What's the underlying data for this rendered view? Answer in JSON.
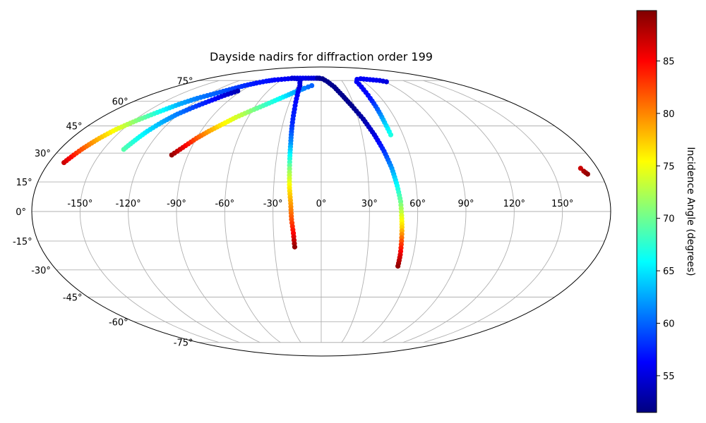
{
  "chart_data": {
    "type": "scatter",
    "projection": "mollweide",
    "title": "Dayside nadirs for diffraction order 199",
    "xlabel": "",
    "ylabel": "",
    "grid": true,
    "lon_ticks": [
      -150,
      -120,
      -90,
      -60,
      -30,
      0,
      30,
      60,
      90,
      120,
      150
    ],
    "lon_tick_labels": [
      "-150°",
      "-120°",
      "-90°",
      "-60°",
      "-30°",
      "0°",
      "30°",
      "60°",
      "90°",
      "120°",
      "150°"
    ],
    "lat_ticks": [
      -75,
      -60,
      -45,
      -30,
      -15,
      0,
      15,
      30,
      45,
      60,
      75
    ],
    "lat_tick_labels": [
      "-75°",
      "-60°",
      "-45°",
      "-30°",
      "-15°",
      "0°",
      "15°",
      "30°",
      "45°",
      "60°",
      "75°"
    ],
    "colormap": "jet",
    "colorbar": {
      "label": "Incidence Angle (degrees)",
      "range": [
        51.5,
        89.8
      ],
      "ticks": [
        55,
        60,
        65,
        70,
        75,
        80,
        85
      ],
      "tick_labels": [
        "55",
        "60",
        "65",
        "70",
        "75",
        "80",
        "85"
      ]
    },
    "series": [
      {
        "points": [
          [
            -170,
            25,
            87
          ],
          [
            -165,
            32,
            82
          ],
          [
            -160,
            38,
            78
          ],
          [
            -155,
            43,
            75
          ],
          [
            -148,
            48,
            71
          ],
          [
            -140,
            53,
            67
          ],
          [
            -132,
            58,
            63
          ],
          [
            -124,
            62,
            61
          ],
          [
            -115,
            65,
            60
          ],
          [
            -106,
            68,
            59
          ],
          [
            -97,
            71,
            58
          ],
          [
            -88,
            73,
            57
          ],
          [
            -79,
            74.5,
            57
          ],
          [
            -70,
            75.5,
            56.5
          ],
          [
            -61,
            76,
            56
          ],
          [
            -52,
            76.5,
            56
          ],
          [
            -43,
            77,
            56
          ],
          [
            -34,
            77,
            56
          ],
          [
            -25,
            77,
            55.5
          ],
          [
            -16,
            77,
            55
          ],
          [
            -8,
            77,
            55
          ],
          [
            -3,
            77,
            55
          ]
        ]
      },
      {
        "points": [
          [
            -136,
            32,
            69
          ],
          [
            -133,
            37,
            67
          ],
          [
            -130,
            42,
            65
          ],
          [
            -126,
            47,
            63
          ],
          [
            -121,
            52,
            61
          ],
          [
            -115,
            56,
            59
          ],
          [
            -108,
            60,
            57
          ],
          [
            -101,
            64,
            55
          ],
          [
            -94,
            67,
            53.5
          ]
        ]
      },
      {
        "points": [
          [
            -101,
            29,
            89
          ],
          [
            -96,
            33,
            86
          ],
          [
            -90,
            38,
            82
          ],
          [
            -84,
            42,
            79
          ],
          [
            -77,
            46,
            76
          ],
          [
            -70,
            50,
            74
          ],
          [
            -61,
            54,
            71
          ],
          [
            -51,
            58,
            68
          ],
          [
            -41,
            62,
            66
          ],
          [
            -30,
            66,
            63
          ],
          [
            -20,
            69,
            61
          ],
          [
            -12,
            71,
            60
          ]
        ]
      },
      {
        "points": [
          [
            -47,
            77,
            55
          ],
          [
            -38,
            76.5,
            55
          ],
          [
            -31,
            75,
            55
          ],
          [
            -27,
            71,
            55
          ],
          [
            -25,
            64,
            56
          ],
          [
            -23.5,
            55,
            57
          ],
          [
            -22.5,
            45,
            58
          ],
          [
            -21.5,
            35,
            62
          ],
          [
            -21,
            27,
            67
          ],
          [
            -20.5,
            20,
            72
          ],
          [
            -20,
            12,
            76
          ],
          [
            -19,
            4,
            79
          ],
          [
            -18.5,
            -4,
            82
          ],
          [
            -17.5,
            -11,
            85
          ],
          [
            -17,
            -18,
            89
          ]
        ]
      },
      {
        "points": [
          [
            -6,
            77,
            53
          ],
          [
            2,
            76.5,
            52
          ],
          [
            9,
            74,
            52
          ],
          [
            16,
            70,
            52
          ],
          [
            22,
            64,
            52
          ],
          [
            28,
            57,
            52
          ],
          [
            34,
            49,
            53
          ],
          [
            39,
            40,
            55
          ],
          [
            43,
            31,
            58
          ],
          [
            46,
            22,
            62
          ],
          [
            48,
            13,
            66
          ],
          [
            49.5,
            5,
            70
          ],
          [
            50,
            -2,
            74
          ],
          [
            50.5,
            -8,
            77
          ],
          [
            51,
            -15,
            82
          ],
          [
            51.5,
            -22,
            86
          ],
          [
            51.5,
            -28,
            89
          ]
        ]
      },
      {
        "points": [
          [
            51,
            40,
            67
          ],
          [
            50,
            47,
            64
          ],
          [
            49.5,
            55,
            60
          ],
          [
            49,
            62,
            57
          ],
          [
            49,
            68,
            56
          ],
          [
            50,
            74,
            56
          ],
          [
            55,
            76,
            56
          ],
          [
            62,
            76.5,
            56
          ],
          [
            70,
            76,
            56
          ],
          [
            78,
            75.5,
            56
          ],
          [
            86,
            75,
            55.5
          ],
          [
            92,
            74,
            55
          ]
        ]
      },
      {
        "points": [
          [
            169,
            22,
            87
          ],
          [
            170,
            20.5,
            88
          ],
          [
            171.5,
            19,
            89
          ]
        ]
      }
    ]
  }
}
